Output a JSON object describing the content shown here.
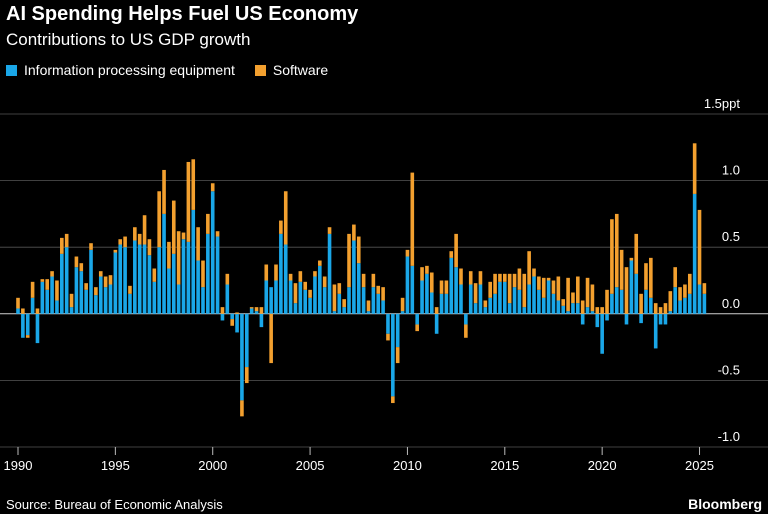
{
  "header": {
    "title": "AI Spending Helps Fuel US Economy",
    "subtitle": "Contributions to US GDP growth"
  },
  "legend": {
    "items": [
      {
        "label": "Information processing equipment",
        "color": "#1aa7e8"
      },
      {
        "label": "Software",
        "color": "#f3a02f"
      }
    ]
  },
  "footer": {
    "source": "Source: Bureau of Economic Analysis",
    "brand": "Bloomberg"
  },
  "chart_data": {
    "type": "bar",
    "stacked": true,
    "frequency": "quarterly",
    "start": "1990",
    "ylim": [
      -1.0,
      1.5
    ],
    "y_ticks": [
      {
        "value": 1.5,
        "label": "1.5ppt"
      },
      {
        "value": 1.0,
        "label": "1.0"
      },
      {
        "value": 0.5,
        "label": "0.5"
      },
      {
        "value": 0.0,
        "label": "0.0"
      },
      {
        "value": -0.5,
        "label": "-0.5"
      },
      {
        "value": -1.0,
        "label": "-1.0"
      }
    ],
    "x_ticks": [
      "1990",
      "1995",
      "2000",
      "2005",
      "2010",
      "2015",
      "2020",
      "2025"
    ],
    "grid": true,
    "legend_position": "top-left",
    "series": [
      {
        "name": "Information processing equipment",
        "color": "#1aa7e8",
        "values": [
          0.04,
          -0.18,
          -0.16,
          0.12,
          -0.22,
          0.24,
          0.18,
          0.28,
          0.1,
          0.45,
          0.5,
          0.05,
          0.35,
          0.32,
          0.18,
          0.48,
          0.14,
          0.28,
          0.2,
          0.22,
          0.46,
          0.52,
          0.5,
          0.15,
          0.55,
          0.52,
          0.52,
          0.44,
          0.24,
          0.5,
          0.75,
          0.34,
          0.45,
          0.22,
          0.56,
          0.54,
          0.78,
          0.4,
          0.2,
          0.6,
          0.92,
          0.58,
          -0.05,
          0.22,
          -0.04,
          -0.14,
          -0.65,
          -0.4,
          0.04,
          0.02,
          -0.1,
          0.25,
          0.2,
          0.25,
          0.6,
          0.52,
          0.25,
          0.08,
          0.24,
          0.18,
          0.12,
          0.28,
          0.36,
          0.2,
          0.6,
          0.02,
          0.15,
          0.05,
          0.2,
          0.55,
          0.38,
          0.2,
          0.02,
          0.2,
          0.15,
          0.1,
          -0.15,
          -0.62,
          -0.25,
          0.02,
          0.43,
          0.36,
          -0.08,
          0.25,
          0.3,
          0.16,
          -0.15,
          0.15,
          0.15,
          0.42,
          0.35,
          0.22,
          -0.08,
          0.22,
          0.08,
          0.22,
          0.05,
          0.12,
          0.15,
          0.24,
          0.24,
          0.08,
          0.2,
          0.18,
          0.05,
          0.22,
          0.28,
          0.18,
          0.12,
          0.25,
          0.15,
          0.1,
          0.06,
          0.02,
          0.08,
          0.08,
          -0.08,
          0.05,
          0.02,
          -0.1,
          -0.3,
          -0.05,
          0.15,
          0.2,
          0.18,
          -0.08,
          0.4,
          0.3,
          -0.07,
          0.18,
          0.12,
          -0.26,
          -0.08,
          -0.08,
          0.02,
          0.2,
          0.1,
          0.12,
          0.15,
          0.9,
          0.22,
          0.15
        ]
      },
      {
        "name": "Software",
        "color": "#f3a02f",
        "values": [
          0.08,
          0.04,
          -0.02,
          0.12,
          0.04,
          0.02,
          0.08,
          0.04,
          0.15,
          0.12,
          0.1,
          0.1,
          0.08,
          0.06,
          0.05,
          0.05,
          0.06,
          0.04,
          0.08,
          0.07,
          0.02,
          0.04,
          0.08,
          0.06,
          0.1,
          0.08,
          0.22,
          0.12,
          0.1,
          0.42,
          0.33,
          0.2,
          0.4,
          0.4,
          0.05,
          0.6,
          0.38,
          0.25,
          0.2,
          0.15,
          0.06,
          0.04,
          0.05,
          0.08,
          -0.05,
          0.01,
          -0.12,
          -0.12,
          0.01,
          0.03,
          0.05,
          0.12,
          -0.37,
          0.12,
          0.1,
          0.4,
          0.05,
          0.15,
          0.08,
          0.06,
          0.06,
          0.04,
          0.04,
          0.08,
          0.05,
          0.2,
          0.08,
          0.06,
          0.4,
          0.12,
          0.2,
          0.1,
          0.08,
          0.1,
          0.06,
          0.1,
          -0.05,
          -0.05,
          -0.12,
          0.1,
          0.05,
          0.7,
          -0.05,
          0.1,
          0.06,
          0.15,
          0.05,
          0.1,
          0.1,
          0.05,
          0.25,
          0.12,
          -0.1,
          0.1,
          0.15,
          0.1,
          0.05,
          0.12,
          0.15,
          0.06,
          0.06,
          0.22,
          0.1,
          0.16,
          0.25,
          0.25,
          0.06,
          0.1,
          0.15,
          0.02,
          0.1,
          0.18,
          0.05,
          0.25,
          0.08,
          0.2,
          0.1,
          0.22,
          0.2,
          0.05,
          0.05,
          0.18,
          0.56,
          0.55,
          0.3,
          0.35,
          0.02,
          0.3,
          0.15,
          0.2,
          0.3,
          0.08,
          0.05,
          0.08,
          0.15,
          0.15,
          0.1,
          0.1,
          0.15,
          0.38,
          0.56,
          0.08
        ]
      }
    ]
  }
}
